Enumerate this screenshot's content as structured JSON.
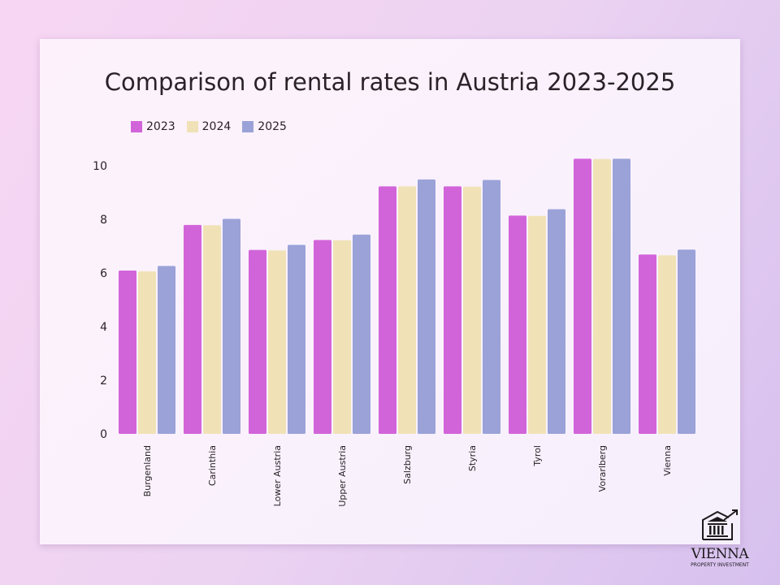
{
  "chart_data": {
    "type": "bar",
    "title": "Comparison of rental rates in Austria 2023-2025",
    "xlabel": "",
    "ylabel": "",
    "ylim": [
      0,
      10.5
    ],
    "yticks": [
      0,
      2,
      4,
      6,
      8,
      10
    ],
    "grid": false,
    "legend_position": "top-left",
    "categories": [
      "Burgenland",
      "Carinthia",
      "Lower Austria",
      "Upper Austria",
      "Salzburg",
      "Styria",
      "Tyrol",
      "Vorarlberg",
      "Vienna"
    ],
    "series": [
      {
        "name": "2023",
        "color": "#d264da",
        "values": [
          6.09,
          7.79,
          6.86,
          7.23,
          9.23,
          9.23,
          8.14,
          10.26,
          6.69
        ]
      },
      {
        "name": "2024",
        "color": "#f0e2b6",
        "values": [
          6.06,
          7.78,
          6.84,
          7.22,
          9.23,
          9.22,
          8.13,
          10.25,
          6.66
        ]
      },
      {
        "name": "2025",
        "color": "#9aa2d8",
        "values": [
          6.26,
          8.02,
          7.05,
          7.43,
          9.49,
          9.47,
          8.38,
          10.26,
          6.87
        ]
      }
    ]
  },
  "logo": {
    "name": "VIENNA",
    "tagline": "PROPERTY INVESTMENT"
  }
}
